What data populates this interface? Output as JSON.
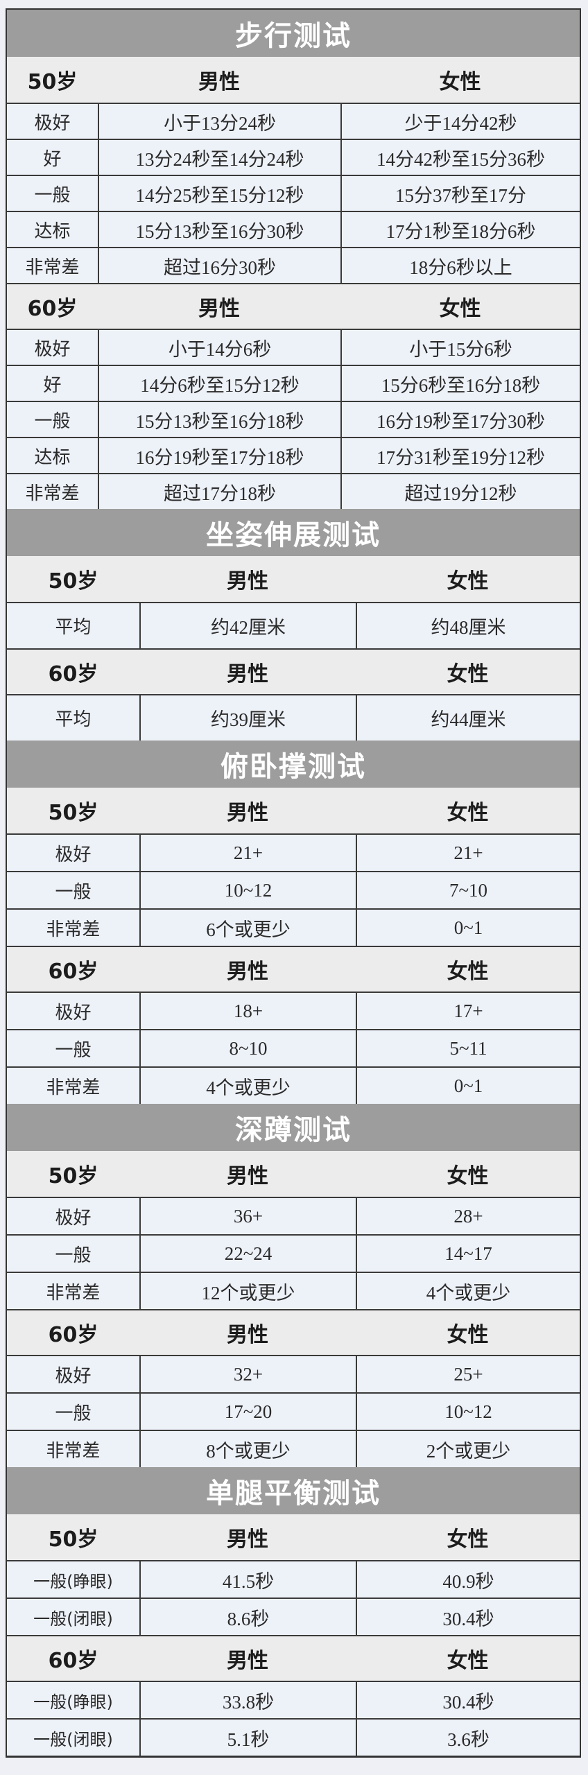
{
  "headers": {
    "male": "男性",
    "female": "女性"
  },
  "colors": {
    "title_band": "#9d9d9d",
    "header_row": "#ececec",
    "cell_bg": "#edf1f8",
    "border": "#3a3a3a"
  },
  "sections": [
    {
      "title": "步行测试",
      "groups": [
        {
          "age": "50岁",
          "rows": [
            [
              "极好",
              "小于13分24秒",
              "少于14分42秒"
            ],
            [
              "好",
              "13分24秒至14分24秒",
              "14分42秒至15分36秒"
            ],
            [
              "一般",
              "14分25秒至15分12秒",
              "15分37秒至17分"
            ],
            [
              "达标",
              "15分13秒至16分30秒",
              "17分1秒至18分6秒"
            ],
            [
              "非常差",
              "超过16分30秒",
              "18分6秒以上"
            ]
          ]
        },
        {
          "age": "60岁",
          "rows": [
            [
              "极好",
              "小于14分6秒",
              "小于15分6秒"
            ],
            [
              "好",
              "14分6秒至15分12秒",
              "15分6秒至16分18秒"
            ],
            [
              "一般",
              "15分13秒至16分18秒",
              "16分19秒至17分30秒"
            ],
            [
              "达标",
              "16分19秒至17分18秒",
              "17分31秒至19分12秒"
            ],
            [
              "非常差",
              "超过17分18秒",
              "超过19分12秒"
            ]
          ]
        }
      ]
    },
    {
      "title": "坐姿伸展测试",
      "groups": [
        {
          "age": "50岁",
          "rows": [
            [
              "平均",
              "约42厘米",
              "约48厘米"
            ]
          ]
        },
        {
          "age": "60岁",
          "rows": [
            [
              "平均",
              "约39厘米",
              "约44厘米"
            ]
          ]
        }
      ]
    },
    {
      "title": "俯卧撑测试",
      "groups": [
        {
          "age": "50岁",
          "rows": [
            [
              "极好",
              "21+",
              "21+"
            ],
            [
              "一般",
              "10~12",
              "7~10"
            ],
            [
              "非常差",
              "6个或更少",
              "0~1"
            ]
          ]
        },
        {
          "age": "60岁",
          "rows": [
            [
              "极好",
              "18+",
              "17+"
            ],
            [
              "一般",
              "8~10",
              "5~11"
            ],
            [
              "非常差",
              "4个或更少",
              "0~1"
            ]
          ]
        }
      ]
    },
    {
      "title": "深蹲测试",
      "groups": [
        {
          "age": "50岁",
          "rows": [
            [
              "极好",
              "36+",
              "28+"
            ],
            [
              "一般",
              "22~24",
              "14~17"
            ],
            [
              "非常差",
              "12个或更少",
              "4个或更少"
            ]
          ]
        },
        {
          "age": "60岁",
          "rows": [
            [
              "极好",
              "32+",
              "25+"
            ],
            [
              "一般",
              "17~20",
              "10~12"
            ],
            [
              "非常差",
              "8个或更少",
              "2个或更少"
            ]
          ]
        }
      ]
    },
    {
      "title": "单腿平衡测试",
      "groups": [
        {
          "age": "50岁",
          "rows": [
            [
              "一般(睁眼)",
              "41.5秒",
              "40.9秒"
            ],
            [
              "一般(闭眼)",
              "8.6秒",
              "30.4秒"
            ]
          ]
        },
        {
          "age": "60岁",
          "rows": [
            [
              "一般(睁眼)",
              "33.8秒",
              "30.4秒"
            ],
            [
              "一般(闭眼)",
              "5.1秒",
              "3.6秒"
            ]
          ]
        }
      ]
    }
  ]
}
